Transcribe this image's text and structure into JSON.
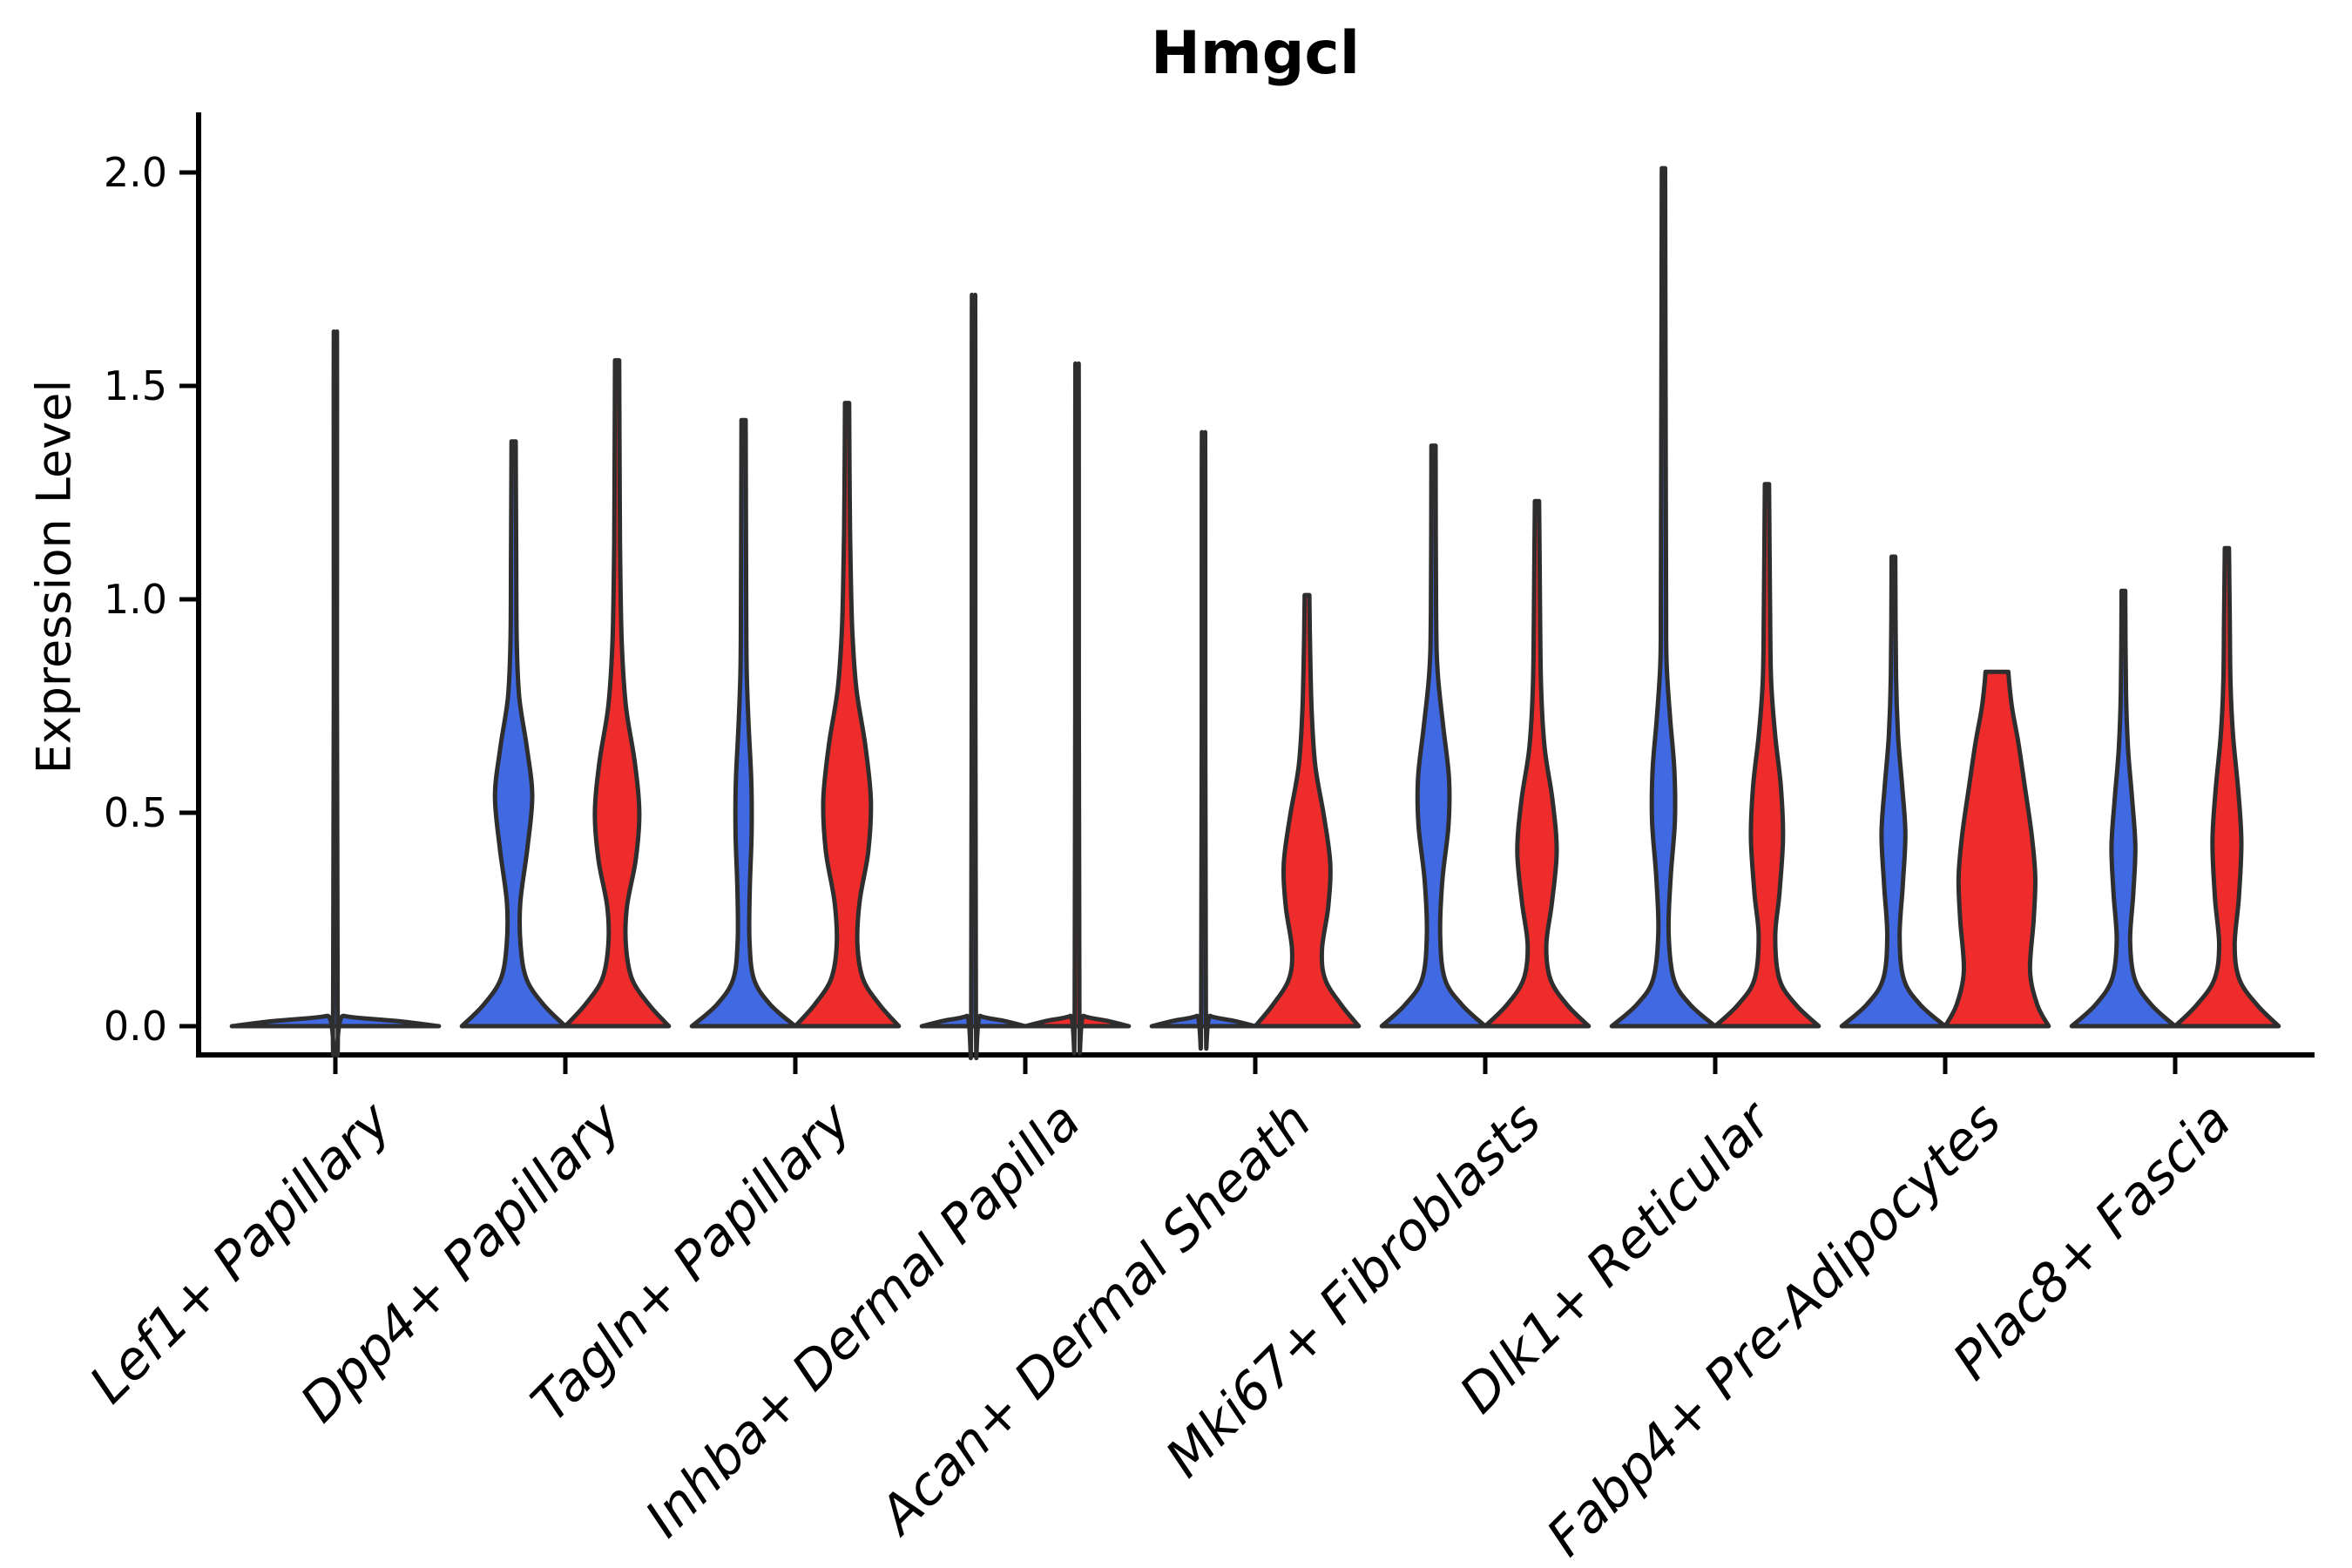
{
  "title": "Hmgcl",
  "y_axis": {
    "label": "Expression Level",
    "ticks": [
      0.0,
      0.5,
      1.0,
      1.5,
      2.0
    ],
    "tick_labels": [
      "0.0",
      "0.5",
      "1.0",
      "1.5",
      "2.0"
    ]
  },
  "colors": {
    "blue": "#4169E1",
    "red": "#EE2C2C",
    "outline": "#2E2E2E",
    "axis": "#000000",
    "background": "#FFFFFF"
  },
  "chart_data": {
    "type": "violin",
    "title": "Hmgcl",
    "xlabel": "",
    "ylabel": "Expression Level",
    "ylim": [
      -0.07,
      2.1
    ],
    "grid": false,
    "legend": "none",
    "split_series": [
      {
        "name": "blue",
        "color": "#4169E1"
      },
      {
        "name": "red",
        "color": "#EE2C2C"
      }
    ],
    "categories": [
      "Lef1+ Papillary",
      "Dpp4+ Papillary",
      "Tagln+ Papillary",
      "Inhba+ Dermal Papilla",
      "Acan+ Dermal Sheath",
      "Mki67+ Fibroblasts",
      "Dlk1+ Reticular",
      "Fabp4+ Pre-Adipocytes",
      "Plac8+ Fascia"
    ],
    "groups": [
      {
        "category": "Lef1+ Papillary",
        "violins": [
          {
            "series": "blue",
            "position": "center",
            "max_expression": 1.56,
            "profile": [
              [
                0,
                1
              ],
              [
                0.012,
                0.6
              ],
              [
                0.024,
                0.08
              ],
              [
                0.045,
                0.022
              ],
              [
                1.5,
                0.016
              ],
              [
                1.56,
                0.015
              ]
            ]
          }
        ]
      },
      {
        "category": "Dpp4+ Papillary",
        "violins": [
          {
            "series": "blue",
            "position": "left",
            "max_expression": 1.37,
            "profile": [
              [
                0,
                1
              ],
              [
                0.05,
                0.58
              ],
              [
                0.11,
                0.25
              ],
              [
                0.19,
                0.135
              ],
              [
                0.29,
                0.13
              ],
              [
                0.42,
                0.27
              ],
              [
                0.54,
                0.36
              ],
              [
                0.65,
                0.26
              ],
              [
                0.77,
                0.11
              ],
              [
                0.9,
                0.06
              ],
              [
                1.1,
                0.05
              ],
              [
                1.37,
                0.04
              ]
            ]
          },
          {
            "series": "red",
            "position": "right",
            "max_expression": 1.56,
            "profile": [
              [
                0,
                1
              ],
              [
                0.05,
                0.62
              ],
              [
                0.11,
                0.29
              ],
              [
                0.19,
                0.17
              ],
              [
                0.28,
                0.19
              ],
              [
                0.39,
                0.36
              ],
              [
                0.5,
                0.43
              ],
              [
                0.62,
                0.34
              ],
              [
                0.75,
                0.17
              ],
              [
                0.9,
                0.09
              ],
              [
                1.08,
                0.06
              ],
              [
                1.25,
                0.05
              ],
              [
                1.56,
                0.04
              ]
            ]
          }
        ]
      },
      {
        "category": "Tagln+ Papillary",
        "violins": [
          {
            "series": "blue",
            "position": "left",
            "max_expression": 1.42,
            "profile": [
              [
                0,
                1
              ],
              [
                0.05,
                0.52
              ],
              [
                0.11,
                0.2
              ],
              [
                0.2,
                0.115
              ],
              [
                0.32,
                0.12
              ],
              [
                0.45,
                0.155
              ],
              [
                0.57,
                0.15
              ],
              [
                0.7,
                0.1
              ],
              [
                0.83,
                0.06
              ],
              [
                1.0,
                0.05
              ],
              [
                1.42,
                0.04
              ]
            ]
          },
          {
            "series": "red",
            "position": "right",
            "max_expression": 1.46,
            "profile": [
              [
                0,
                1
              ],
              [
                0.05,
                0.63
              ],
              [
                0.11,
                0.31
              ],
              [
                0.19,
                0.2
              ],
              [
                0.29,
                0.24
              ],
              [
                0.41,
                0.41
              ],
              [
                0.53,
                0.46
              ],
              [
                0.66,
                0.35
              ],
              [
                0.79,
                0.18
              ],
              [
                0.93,
                0.1
              ],
              [
                1.1,
                0.065
              ],
              [
                1.25,
                0.05
              ],
              [
                1.46,
                0.04
              ]
            ]
          }
        ]
      },
      {
        "category": "Inhba+ Dermal Papilla",
        "violins": [
          {
            "series": "blue",
            "position": "left",
            "max_expression": 1.64,
            "profile": [
              [
                0,
                1
              ],
              [
                0.012,
                0.6
              ],
              [
                0.024,
                0.13
              ],
              [
                0.045,
                0.045
              ],
              [
                1.58,
                0.034
              ],
              [
                1.64,
                0.03
              ]
            ]
          },
          {
            "series": "red",
            "position": "right",
            "max_expression": 1.49,
            "profile": [
              [
                0,
                1
              ],
              [
                0.012,
                0.6
              ],
              [
                0.024,
                0.13
              ],
              [
                0.045,
                0.045
              ],
              [
                1.43,
                0.034
              ],
              [
                1.49,
                0.03
              ]
            ]
          }
        ]
      },
      {
        "category": "Acan+ Dermal Sheath",
        "violins": [
          {
            "series": "blue",
            "position": "left",
            "max_expression": 1.34,
            "profile": [
              [
                0,
                1
              ],
              [
                0.012,
                0.6
              ],
              [
                0.024,
                0.13
              ],
              [
                0.045,
                0.045
              ],
              [
                1.28,
                0.034
              ],
              [
                1.34,
                0.03
              ]
            ]
          },
          {
            "series": "red",
            "position": "right",
            "max_expression": 1.01,
            "profile": [
              [
                0,
                1
              ],
              [
                0.05,
                0.66
              ],
              [
                0.11,
                0.35
              ],
              [
                0.18,
                0.29
              ],
              [
                0.28,
                0.41
              ],
              [
                0.38,
                0.45
              ],
              [
                0.49,
                0.33
              ],
              [
                0.61,
                0.16
              ],
              [
                0.74,
                0.09
              ],
              [
                0.88,
                0.06
              ],
              [
                1.01,
                0.045
              ]
            ]
          }
        ]
      },
      {
        "category": "Mki67+ Fibroblasts",
        "violins": [
          {
            "series": "blue",
            "position": "left",
            "max_expression": 1.36,
            "profile": [
              [
                0,
                1
              ],
              [
                0.05,
                0.55
              ],
              [
                0.11,
                0.22
              ],
              [
                0.21,
                0.13
              ],
              [
                0.34,
                0.17
              ],
              [
                0.47,
                0.29
              ],
              [
                0.58,
                0.3
              ],
              [
                0.7,
                0.19
              ],
              [
                0.83,
                0.08
              ],
              [
                0.97,
                0.05
              ],
              [
                1.36,
                0.04
              ]
            ]
          },
          {
            "series": "red",
            "position": "right",
            "max_expression": 1.23,
            "profile": [
              [
                0,
                1
              ],
              [
                0.05,
                0.58
              ],
              [
                0.11,
                0.26
              ],
              [
                0.19,
                0.18
              ],
              [
                0.29,
                0.29
              ],
              [
                0.41,
                0.38
              ],
              [
                0.53,
                0.3
              ],
              [
                0.65,
                0.15
              ],
              [
                0.79,
                0.08
              ],
              [
                0.95,
                0.06
              ],
              [
                1.1,
                0.05
              ],
              [
                1.23,
                0.04
              ]
            ]
          }
        ]
      },
      {
        "category": "Dlk1+ Reticular",
        "violins": [
          {
            "series": "blue",
            "position": "left",
            "max_expression": 2.01,
            "profile": [
              [
                0,
                1
              ],
              [
                0.05,
                0.52
              ],
              [
                0.11,
                0.2
              ],
              [
                0.22,
                0.1
              ],
              [
                0.35,
                0.14
              ],
              [
                0.48,
                0.22
              ],
              [
                0.6,
                0.21
              ],
              [
                0.72,
                0.13
              ],
              [
                0.85,
                0.06
              ],
              [
                1.0,
                0.05
              ],
              [
                1.5,
                0.04
              ],
              [
                2.01,
                0.032
              ]
            ]
          },
          {
            "series": "red",
            "position": "right",
            "max_expression": 1.27,
            "profile": [
              [
                0,
                1
              ],
              [
                0.05,
                0.56
              ],
              [
                0.11,
                0.24
              ],
              [
                0.21,
                0.16
              ],
              [
                0.31,
                0.24
              ],
              [
                0.44,
                0.31
              ],
              [
                0.56,
                0.27
              ],
              [
                0.68,
                0.16
              ],
              [
                0.81,
                0.08
              ],
              [
                0.97,
                0.06
              ],
              [
                1.27,
                0.04
              ]
            ]
          }
        ]
      },
      {
        "category": "Fabp4+ Pre-Adipocytes",
        "violins": [
          {
            "series": "blue",
            "position": "left",
            "max_expression": 1.1,
            "profile": [
              [
                0,
                1
              ],
              [
                0.05,
                0.52
              ],
              [
                0.11,
                0.2
              ],
              [
                0.21,
                0.12
              ],
              [
                0.33,
                0.18
              ],
              [
                0.45,
                0.23
              ],
              [
                0.56,
                0.17
              ],
              [
                0.68,
                0.09
              ],
              [
                0.82,
                0.05
              ],
              [
                1.1,
                0.035
              ]
            ]
          },
          {
            "series": "red",
            "position": "right",
            "max_expression": 0.83,
            "flat_top": true,
            "profile": [
              [
                0,
                1
              ],
              [
                0.05,
                0.78
              ],
              [
                0.13,
                0.64
              ],
              [
                0.25,
                0.71
              ],
              [
                0.35,
                0.74
              ],
              [
                0.45,
                0.67
              ],
              [
                0.56,
                0.54
              ],
              [
                0.66,
                0.42
              ],
              [
                0.74,
                0.3
              ],
              [
                0.8,
                0.24
              ],
              [
                0.83,
                0.22
              ]
            ]
          }
        ]
      },
      {
        "category": "Plac8+ Fascia",
        "violins": [
          {
            "series": "blue",
            "position": "left",
            "max_expression": 1.02,
            "profile": [
              [
                0,
                1
              ],
              [
                0.05,
                0.54
              ],
              [
                0.11,
                0.22
              ],
              [
                0.2,
                0.13
              ],
              [
                0.31,
                0.19
              ],
              [
                0.42,
                0.23
              ],
              [
                0.53,
                0.17
              ],
              [
                0.65,
                0.09
              ],
              [
                0.78,
                0.05
              ],
              [
                1.02,
                0.035
              ]
            ]
          },
          {
            "series": "red",
            "position": "right",
            "max_expression": 1.12,
            "profile": [
              [
                0,
                1
              ],
              [
                0.05,
                0.58
              ],
              [
                0.11,
                0.24
              ],
              [
                0.19,
                0.15
              ],
              [
                0.3,
                0.23
              ],
              [
                0.43,
                0.28
              ],
              [
                0.55,
                0.22
              ],
              [
                0.68,
                0.12
              ],
              [
                0.8,
                0.07
              ],
              [
                0.95,
                0.055
              ],
              [
                1.12,
                0.04
              ]
            ]
          }
        ]
      }
    ]
  }
}
